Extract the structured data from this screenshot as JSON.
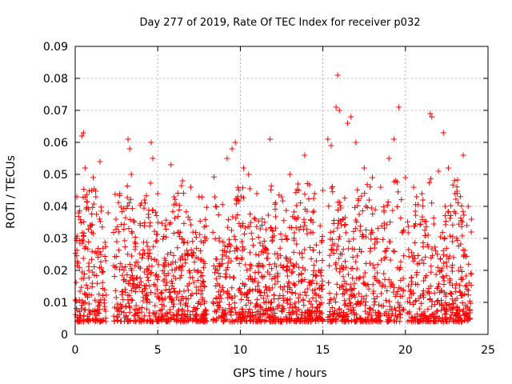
{
  "chart_data": {
    "type": "scatter",
    "title": "Day 277 of 2019, Rate Of TEC Index for receiver p032",
    "xlabel": "GPS time / hours",
    "ylabel": "ROTI / TECUs",
    "xlim": [
      0,
      25
    ],
    "ylim": [
      0,
      0.09
    ],
    "x_ticks": [
      "0",
      "5",
      "10",
      "15",
      "20",
      "25"
    ],
    "y_ticks": [
      "0",
      "0.01",
      "0.02",
      "0.03",
      "0.04",
      "0.05",
      "0.06",
      "0.07",
      "0.08",
      "0.09"
    ],
    "grid": true,
    "legend": "none",
    "marker": "plus",
    "series": [
      {
        "color": "#ff0000",
        "coverage_x": [
          0,
          24
        ],
        "points": [
          [
            0.1,
            0.043
          ],
          [
            0.2,
            0.038
          ],
          [
            0.4,
            0.062
          ],
          [
            0.5,
            0.063
          ],
          [
            0.6,
            0.052
          ],
          [
            1.0,
            0.045
          ],
          [
            1.5,
            0.054
          ],
          [
            2.0,
            0.038
          ],
          [
            2.7,
            0.044
          ],
          [
            3.2,
            0.061
          ],
          [
            3.3,
            0.058
          ],
          [
            3.4,
            0.05
          ],
          [
            4.0,
            0.041
          ],
          [
            4.6,
            0.06
          ],
          [
            4.7,
            0.055
          ],
          [
            5.0,
            0.044
          ],
          [
            5.8,
            0.053
          ],
          [
            6.5,
            0.048
          ],
          [
            7.0,
            0.046
          ],
          [
            7.5,
            0.043
          ],
          [
            8.5,
            0.04
          ],
          [
            9.2,
            0.055
          ],
          [
            9.5,
            0.058
          ],
          [
            9.7,
            0.06
          ],
          [
            10.2,
            0.052
          ],
          [
            10.5,
            0.05
          ],
          [
            11.0,
            0.044
          ],
          [
            11.8,
            0.061
          ],
          [
            12.5,
            0.043
          ],
          [
            13.0,
            0.05
          ],
          [
            13.5,
            0.047
          ],
          [
            13.9,
            0.056
          ],
          [
            14.5,
            0.044
          ],
          [
            15.0,
            0.045
          ],
          [
            15.3,
            0.061
          ],
          [
            15.5,
            0.059
          ],
          [
            15.8,
            0.071
          ],
          [
            15.9,
            0.081
          ],
          [
            16.0,
            0.07
          ],
          [
            16.5,
            0.066
          ],
          [
            16.7,
            0.068
          ],
          [
            17.0,
            0.06
          ],
          [
            17.5,
            0.052
          ],
          [
            18.0,
            0.049
          ],
          [
            18.5,
            0.046
          ],
          [
            19.0,
            0.055
          ],
          [
            19.3,
            0.061
          ],
          [
            19.6,
            0.071
          ],
          [
            20.0,
            0.049
          ],
          [
            20.5,
            0.046
          ],
          [
            21.0,
            0.044
          ],
          [
            21.5,
            0.069
          ],
          [
            21.6,
            0.068
          ],
          [
            22.0,
            0.051
          ],
          [
            22.3,
            0.063
          ],
          [
            22.6,
            0.052
          ],
          [
            23.0,
            0.044
          ],
          [
            23.5,
            0.056
          ],
          [
            23.8,
            0.04
          ],
          [
            24.0,
            0.036
          ]
        ]
      }
    ]
  }
}
